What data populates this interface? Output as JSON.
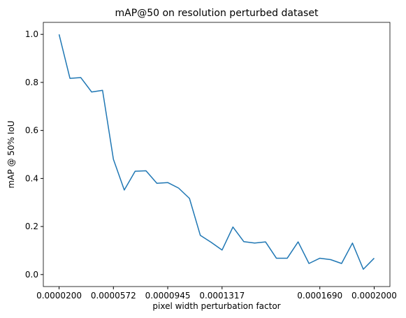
{
  "chart_data": {
    "type": "line",
    "title": "mAP@50 on resolution perturbed dataset",
    "xlabel": "pixel width perturbation factor",
    "ylabel": "mAP @ 50% IoU",
    "categories": [
      "0.0000200",
      null,
      null,
      null,
      null,
      "0.0000572",
      null,
      null,
      null,
      null,
      "0.0000945",
      null,
      null,
      null,
      null,
      "0.0001317",
      null,
      null,
      null,
      null,
      null,
      null,
      null,
      null,
      "0.0001690",
      null,
      null,
      null,
      null,
      "0.0002000"
    ],
    "series": [
      {
        "color": "#1f77b4",
        "values": [
          1.0,
          0.817,
          0.82,
          0.76,
          0.767,
          0.48,
          0.352,
          0.43,
          0.432,
          0.38,
          0.383,
          0.36,
          0.317,
          0.163,
          0.134,
          0.102,
          0.198,
          0.137,
          0.131,
          0.136,
          0.068,
          0.068,
          0.136,
          0.046,
          0.068,
          0.062,
          0.046,
          0.131,
          0.022,
          0.068
        ]
      }
    ],
    "ylim": [
      -0.05,
      1.05
    ],
    "yticks": [
      {
        "value": 0,
        "label": "0.0"
      },
      {
        "value": 0.2,
        "label": "0.2"
      },
      {
        "value": 0.4,
        "label": "0.4"
      },
      {
        "value": 0.6,
        "label": "0.6"
      },
      {
        "value": 0.8,
        "label": "0.8"
      },
      {
        "value": 1,
        "label": "1.0"
      }
    ],
    "grid": false
  }
}
